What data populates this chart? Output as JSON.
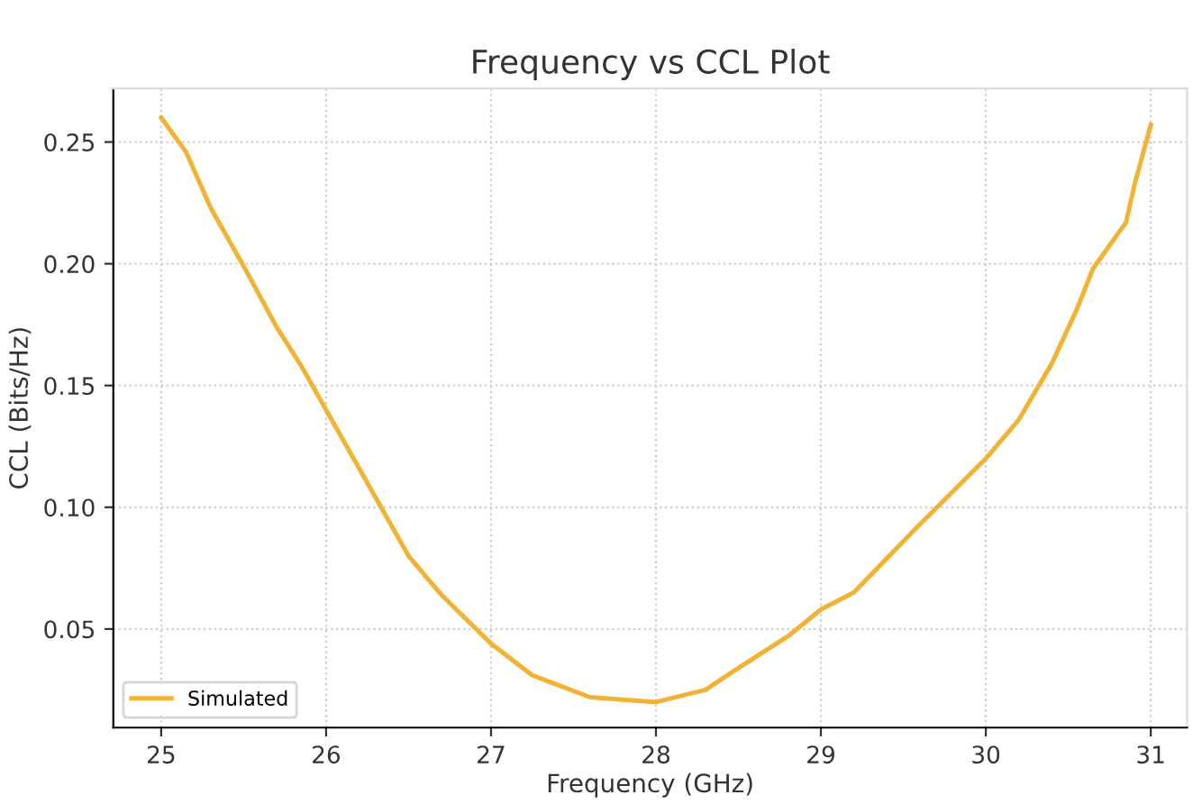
{
  "chart_data": {
    "type": "line",
    "title": "Frequency vs CCL Plot",
    "xlabel": "Frequency (GHz)",
    "ylabel": "CCL (Bits/Hz)",
    "series": [
      {
        "name": "Simulated",
        "color": "#f2b233",
        "x": [
          25.0,
          25.15,
          25.3,
          25.5,
          25.7,
          25.85,
          26.0,
          26.2,
          26.3,
          26.5,
          26.7,
          27.0,
          27.25,
          27.6,
          28.0,
          28.3,
          28.5,
          28.8,
          29.0,
          29.2,
          29.6,
          30.0,
          30.2,
          30.4,
          30.55,
          30.65,
          30.85,
          30.9,
          31.0
        ],
        "values": [
          0.26,
          0.246,
          0.223,
          0.199,
          0.174,
          0.158,
          0.14,
          0.116,
          0.104,
          0.08,
          0.064,
          0.044,
          0.031,
          0.022,
          0.02,
          0.025,
          0.034,
          0.047,
          0.058,
          0.065,
          0.093,
          0.12,
          0.136,
          0.159,
          0.181,
          0.198,
          0.217,
          0.232,
          0.257
        ]
      }
    ],
    "xlim": [
      24.71,
      31.22
    ],
    "ylim": [
      0.0095,
      0.272
    ],
    "xticks": [
      25,
      26,
      27,
      28,
      29,
      30,
      31
    ],
    "yticks": [
      0.05,
      {
        "value": 0.1,
        "label": "0.10"
      },
      0.15,
      {
        "value": 0.2,
        "label": "0.20"
      },
      0.25
    ],
    "grid": true,
    "legend": "bottom left",
    "marker": "none",
    "line_style": "solid"
  }
}
